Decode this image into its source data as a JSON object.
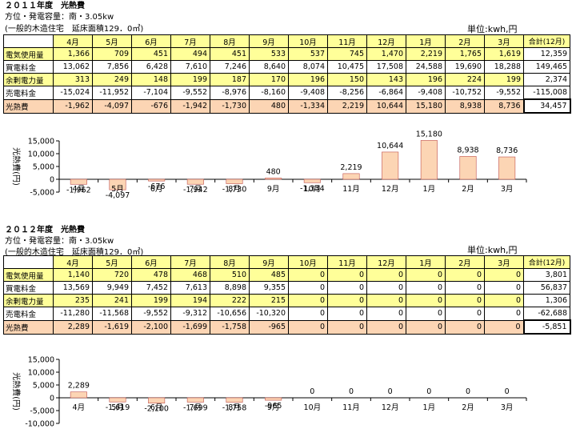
{
  "y2011": {
    "title": "２０１１年度　光熱費",
    "sub1": "方位・発電容量：南・3.05kw",
    "sub2": "(一般的木造住宅　延床面積129．0㎡)",
    "unit": "単位:kwh,円",
    "months": [
      "4月",
      "5月",
      "6月",
      "7月",
      "8月",
      "9月",
      "10月",
      "11月",
      "12月",
      "1月",
      "2月",
      "3月"
    ],
    "total_header": "合計(12月)",
    "rows": [
      {
        "label": "電気使用量",
        "values": [
          "1,366",
          "709",
          "451",
          "494",
          "451",
          "533",
          "537",
          "745",
          "1,470",
          "2,219",
          "1,765",
          "1,619"
        ],
        "total": "12,359"
      },
      {
        "label": "買電料金",
        "values": [
          "13,062",
          "7,856",
          "6,428",
          "7,610",
          "7,246",
          "8,640",
          "8,074",
          "10,475",
          "17,508",
          "24,588",
          "19,690",
          "18,288"
        ],
        "total": "149,465"
      },
      {
        "label": "余剰電力量",
        "values": [
          "313",
          "249",
          "148",
          "199",
          "187",
          "170",
          "196",
          "150",
          "143",
          "196",
          "224",
          "199"
        ],
        "total": "2,374"
      },
      {
        "label": "売電料金",
        "values": [
          "-15,024",
          "-11,952",
          "-7,104",
          "-9,552",
          "-8,976",
          "-8,160",
          "-9,408",
          "-8,256",
          "-6,864",
          "-9,408",
          "-10,752",
          "-9,552"
        ],
        "total": "-115,008"
      },
      {
        "label": "光熱費",
        "values": [
          "-1,962",
          "-4,097",
          "-676",
          "-1,942",
          "-1,730",
          "480",
          "-1,334",
          "2,219",
          "10,644",
          "15,180",
          "8,938",
          "8,736"
        ],
        "total": "34,457"
      }
    ]
  },
  "y2012": {
    "title": "２０１２年度　光熱費",
    "sub1": "方位・発電容量：南・3.05kw",
    "sub2": "(一般的木造住宅　延床面積129．0㎡)",
    "unit": "単位:kwh,円",
    "months": [
      "4月",
      "5月",
      "6月",
      "7月",
      "8月",
      "9月",
      "10月",
      "11月",
      "12月",
      "1月",
      "2月",
      "3月"
    ],
    "total_header": "合計(12月)",
    "rows": [
      {
        "label": "電気使用量",
        "values": [
          "1,140",
          "720",
          "478",
          "468",
          "510",
          "485",
          "0",
          "0",
          "0",
          "0",
          "0",
          "0"
        ],
        "total": "3,801"
      },
      {
        "label": "買電料金",
        "values": [
          "13,569",
          "9,949",
          "7,452",
          "7,613",
          "8,898",
          "9,355",
          "0",
          "0",
          "0",
          "0",
          "0",
          "0"
        ],
        "total": "56,837"
      },
      {
        "label": "余剰電力量",
        "values": [
          "235",
          "241",
          "199",
          "194",
          "222",
          "215",
          "0",
          "0",
          "0",
          "0",
          "0",
          "0"
        ],
        "total": "1,306"
      },
      {
        "label": "売電料金",
        "values": [
          "-11,280",
          "-11,568",
          "-9,552",
          "-9,312",
          "-10,656",
          "-10,320",
          "0",
          "0",
          "0",
          "0",
          "0",
          "0"
        ],
        "total": "-62,688"
      },
      {
        "label": "光熱費",
        "values": [
          "2,289",
          "-1,619",
          "-2,100",
          "-1,699",
          "-1,758",
          "-965",
          "0",
          "0",
          "0",
          "0",
          "0",
          "0"
        ],
        "total": "-5,851"
      }
    ]
  },
  "chart_data": [
    {
      "type": "bar",
      "title": "",
      "ylabel": "光熱費(円)",
      "xlabel": "",
      "categories": [
        "4月",
        "5月",
        "6月",
        "7月",
        "8月",
        "9月",
        "10月",
        "11月",
        "12月",
        "1月",
        "2月",
        "3月"
      ],
      "values": [
        -1962,
        -4097,
        -676,
        -1942,
        -1730,
        480,
        -1334,
        2219,
        10644,
        15180,
        8938,
        8736
      ],
      "labels": [
        "-1,962",
        "-4,097",
        "-676",
        "-1,942",
        "-1,730",
        "480",
        "-1,334",
        "2,219",
        "10,644",
        "15,180",
        "8,938",
        "8,736"
      ],
      "ylim": [
        -5000,
        15000
      ],
      "yticks": [
        "15,000",
        "10,000",
        "5,000",
        "0",
        "-5,000"
      ],
      "bar_color": "#fcd5b4"
    },
    {
      "type": "bar",
      "title": "",
      "ylabel": "光熱費(円)",
      "xlabel": "",
      "categories": [
        "4月",
        "5月",
        "6月",
        "7月",
        "8月",
        "9月",
        "10月",
        "11月",
        "12月",
        "1月",
        "2月",
        "3月"
      ],
      "values": [
        2289,
        -1619,
        -2100,
        -1699,
        -1758,
        -965,
        0,
        0,
        0,
        0,
        0,
        0
      ],
      "labels": [
        "2,289",
        "-1,619",
        "-2,100",
        "-1,699",
        "-1,758",
        "-965",
        "0",
        "0",
        "0",
        "0",
        "0",
        "0"
      ],
      "ylim": [
        -10000,
        15000
      ],
      "yticks": [
        "15,000",
        "10,000",
        "5,000",
        "0",
        "-5,000",
        "-10,000"
      ],
      "bar_color": "#fcd5b4"
    }
  ]
}
